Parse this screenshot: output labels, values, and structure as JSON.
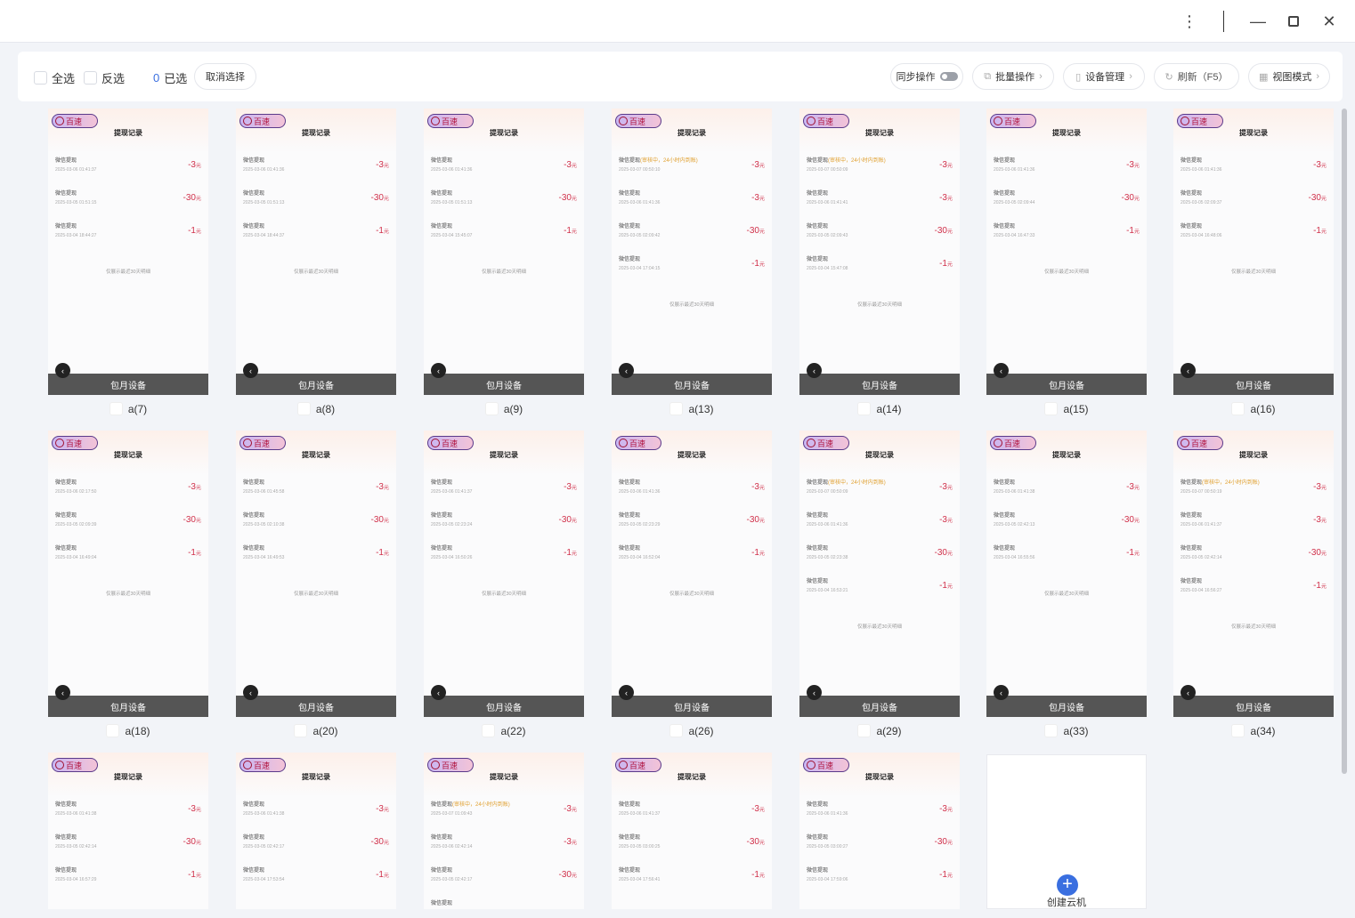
{
  "window": {
    "menu_icon": "more-vertical-icon",
    "min_icon": "minimize-icon",
    "max_icon": "maximize-icon",
    "close_icon": "close-icon"
  },
  "toolbar": {
    "select_all": "全选",
    "invert": "反选",
    "selected_count": "0",
    "selected_label": "已选",
    "clear_selection": "取消选择",
    "sync": "同步操作",
    "sync_on": false,
    "batch": "批量操作",
    "device_mgmt": "设备管理",
    "refresh": "刷新（F5）",
    "view_mode": "视图模式"
  },
  "colors": {
    "accent": "#3a6fe0",
    "amount": "#d0304a",
    "pending": "#e0a030",
    "bar": "#555555"
  },
  "phone": {
    "badge": "百速",
    "title": "提现记录",
    "record_name": "微信提现",
    "pending_note": "(审核中，24小时内到账)",
    "currency": "元",
    "footer": "仅展示最近30天明细",
    "bottom_bar": "包月设备"
  },
  "devices": [
    {
      "label": "a(7)",
      "records": [
        {
          "time": "2025-03-06 01:41:37",
          "amount": "-3"
        },
        {
          "time": "2025-03-05 01:51:15",
          "amount": "-30"
        },
        {
          "time": "2025-03-04 18:44:27",
          "amount": "-1"
        }
      ]
    },
    {
      "label": "a(8)",
      "records": [
        {
          "time": "2025-03-06 01:41:36",
          "amount": "-3"
        },
        {
          "time": "2025-03-05 01:51:13",
          "amount": "-30"
        },
        {
          "time": "2025-03-04 18:44:37",
          "amount": "-1"
        }
      ]
    },
    {
      "label": "a(9)",
      "records": [
        {
          "time": "2025-03-06 01:41:36",
          "amount": "-3"
        },
        {
          "time": "2025-03-05 01:51:13",
          "amount": "-30"
        },
        {
          "time": "2025-03-04 15:45:07",
          "amount": "-1"
        }
      ]
    },
    {
      "label": "a(13)",
      "records": [
        {
          "time": "2025-03-07 00:50:10",
          "amount": "-3",
          "pending": true
        },
        {
          "time": "2025-03-06 01:41:36",
          "amount": "-3"
        },
        {
          "time": "2025-03-05 02:09:42",
          "amount": "-30"
        },
        {
          "time": "2025-03-04 17:04:15",
          "amount": "-1"
        }
      ]
    },
    {
      "label": "a(14)",
      "records": [
        {
          "time": "2025-03-07 00:50:09",
          "amount": "-3",
          "pending": true
        },
        {
          "time": "2025-03-06 01:41:41",
          "amount": "-3"
        },
        {
          "time": "2025-03-05 02:09:43",
          "amount": "-30"
        },
        {
          "time": "2025-03-04 15:47:08",
          "amount": "-1"
        }
      ]
    },
    {
      "label": "a(15)",
      "records": [
        {
          "time": "2025-03-06 01:41:36",
          "amount": "-3"
        },
        {
          "time": "2025-03-05 02:09:44",
          "amount": "-30"
        },
        {
          "time": "2025-03-04 16:47:33",
          "amount": "-1"
        }
      ]
    },
    {
      "label": "a(16)",
      "records": [
        {
          "time": "2025-03-06 01:41:36",
          "amount": "-3"
        },
        {
          "time": "2025-03-05 02:09:37",
          "amount": "-30"
        },
        {
          "time": "2025-03-04 16:48:06",
          "amount": "-1"
        }
      ]
    },
    {
      "label": "a(18)",
      "records": [
        {
          "time": "2025-03-06 02:17:50",
          "amount": "-3"
        },
        {
          "time": "2025-03-05 02:09:39",
          "amount": "-30"
        },
        {
          "time": "2025-03-04 16:49:04",
          "amount": "-1"
        }
      ]
    },
    {
      "label": "a(20)",
      "records": [
        {
          "time": "2025-03-06 01:45:58",
          "amount": "-3"
        },
        {
          "time": "2025-03-05 02:10:38",
          "amount": "-30"
        },
        {
          "time": "2025-03-04 16:49:53",
          "amount": "-1"
        }
      ]
    },
    {
      "label": "a(22)",
      "records": [
        {
          "time": "2025-03-06 01:41:37",
          "amount": "-3"
        },
        {
          "time": "2025-03-05 02:23:24",
          "amount": "-30"
        },
        {
          "time": "2025-03-04 16:50:26",
          "amount": "-1"
        }
      ]
    },
    {
      "label": "a(26)",
      "records": [
        {
          "time": "2025-03-06 01:41:36",
          "amount": "-3"
        },
        {
          "time": "2025-03-05 02:23:29",
          "amount": "-30"
        },
        {
          "time": "2025-03-04 16:52:04",
          "amount": "-1"
        }
      ]
    },
    {
      "label": "a(29)",
      "records": [
        {
          "time": "2025-03-07 00:50:09",
          "amount": "-3",
          "pending": true
        },
        {
          "time": "2025-03-06 01:41:36",
          "amount": "-3"
        },
        {
          "time": "2025-03-05 02:23:38",
          "amount": "-30"
        },
        {
          "time": "2025-03-04 16:53:21",
          "amount": "-1"
        }
      ]
    },
    {
      "label": "a(33)",
      "records": [
        {
          "time": "2025-03-06 01:41:38",
          "amount": "-3"
        },
        {
          "time": "2025-03-05 02:42:13",
          "amount": "-30"
        },
        {
          "time": "2025-03-04 16:55:56",
          "amount": "-1"
        }
      ]
    },
    {
      "label": "a(34)",
      "records": [
        {
          "time": "2025-03-07 00:50:19",
          "amount": "-3",
          "pending": true
        },
        {
          "time": "2025-03-06 01:41:37",
          "amount": "-3"
        },
        {
          "time": "2025-03-05 02:42:14",
          "amount": "-30"
        },
        {
          "time": "2025-03-04 16:56:27",
          "amount": "-1"
        }
      ]
    },
    {
      "records": [
        {
          "time": "2025-03-06 01:41:38",
          "amount": "-3"
        },
        {
          "time": "2025-03-05 02:42:14",
          "amount": "-30"
        },
        {
          "time": "2025-03-04 16:57:29",
          "amount": "-1"
        }
      ]
    },
    {
      "records": [
        {
          "time": "2025-03-06 01:41:38",
          "amount": "-3"
        },
        {
          "time": "2025-03-05 02:42:17",
          "amount": "-30"
        },
        {
          "time": "2025-03-04 17:53:54",
          "amount": "-1"
        }
      ]
    },
    {
      "records": [
        {
          "time": "2025-03-07 01:09:43",
          "amount": "-3",
          "pending": true
        },
        {
          "time": "2025-03-06 02:42:14",
          "amount": "-3"
        },
        {
          "time": "2025-03-05 02:42:17",
          "amount": "-30"
        },
        {
          "time": "",
          "amount": ""
        }
      ]
    },
    {
      "records": [
        {
          "time": "2025-03-06 01:41:37",
          "amount": "-3"
        },
        {
          "time": "2025-03-05 03:00:25",
          "amount": "-30"
        },
        {
          "time": "2025-03-04 17:56:41",
          "amount": "-1"
        }
      ]
    },
    {
      "records": [
        {
          "time": "2025-03-06 01:41:36",
          "amount": "-3"
        },
        {
          "time": "2025-03-05 03:00:27",
          "amount": "-30"
        },
        {
          "time": "2025-03-04 17:59:06",
          "amount": "-1"
        }
      ]
    }
  ],
  "add_card": {
    "label": "创建云机",
    "icon": "plus-circle-icon"
  }
}
